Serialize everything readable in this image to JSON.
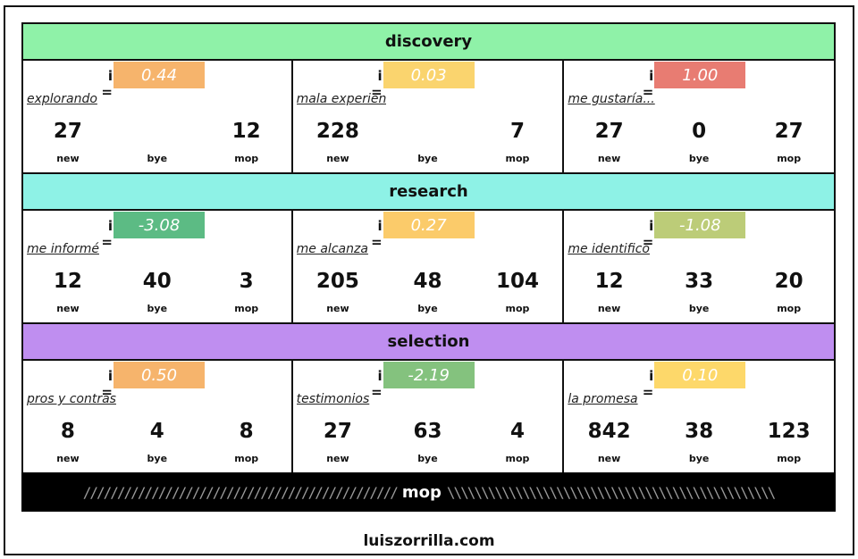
{
  "stages": [
    {
      "name": "discovery",
      "color": "#8ff2a8",
      "cells": [
        {
          "i_label": "i =",
          "i_value": "0.44",
          "i_color": "#f6b46c",
          "title": "explorando",
          "metrics": [
            {
              "value": "27",
              "label": "new"
            },
            {
              "value": "",
              "label": "bye"
            },
            {
              "value": "12",
              "label": "mop"
            }
          ]
        },
        {
          "i_label": "i =",
          "i_value": "0.03",
          "i_color": "#fad46e",
          "title": "mala experiencia",
          "metrics": [
            {
              "value": "228",
              "label": "new"
            },
            {
              "value": "",
              "label": "bye"
            },
            {
              "value": "7",
              "label": "mop"
            }
          ]
        },
        {
          "i_label": "i =",
          "i_value": "1.00",
          "i_color": "#e87c72",
          "title": "me gustaría...",
          "metrics": [
            {
              "value": "27",
              "label": "new"
            },
            {
              "value": "0",
              "label": "bye"
            },
            {
              "value": "27",
              "label": "mop"
            }
          ]
        }
      ]
    },
    {
      "name": "research",
      "color": "#8ef2e6",
      "cells": [
        {
          "i_label": "i =",
          "i_value": "-3.08",
          "i_color": "#5cbb84",
          "title": "me informé",
          "metrics": [
            {
              "value": "12",
              "label": "new"
            },
            {
              "value": "40",
              "label": "bye"
            },
            {
              "value": "3",
              "label": "mop"
            }
          ]
        },
        {
          "i_label": "i =",
          "i_value": "0.27",
          "i_color": "#fbcb6a",
          "title": "me alcanza",
          "metrics": [
            {
              "value": "205",
              "label": "new"
            },
            {
              "value": "48",
              "label": "bye"
            },
            {
              "value": "104",
              "label": "mop"
            }
          ]
        },
        {
          "i_label": "i =",
          "i_value": "-1.08",
          "i_color": "#bccc78",
          "title": "me identifico",
          "metrics": [
            {
              "value": "12",
              "label": "new"
            },
            {
              "value": "33",
              "label": "bye"
            },
            {
              "value": "20",
              "label": "mop"
            }
          ]
        }
      ]
    },
    {
      "name": "selection",
      "color": "#bf8ef0",
      "cells": [
        {
          "i_label": "i =",
          "i_value": "0.50",
          "i_color": "#f6b46c",
          "title": "pros y contras",
          "metrics": [
            {
              "value": "8",
              "label": "new"
            },
            {
              "value": "4",
              "label": "bye"
            },
            {
              "value": "8",
              "label": "mop"
            }
          ]
        },
        {
          "i_label": "i =",
          "i_value": "-2.19",
          "i_color": "#84c27e",
          "title": "testimonios",
          "metrics": [
            {
              "value": "27",
              "label": "new"
            },
            {
              "value": "63",
              "label": "bye"
            },
            {
              "value": "4",
              "label": "mop"
            }
          ]
        },
        {
          "i_label": "i =",
          "i_value": "0.10",
          "i_color": "#fdd86a",
          "title": "la promesa",
          "metrics": [
            {
              "value": "842",
              "label": "new"
            },
            {
              "value": "38",
              "label": "bye"
            },
            {
              "value": "123",
              "label": "mop"
            }
          ]
        }
      ]
    }
  ],
  "mop_bar": {
    "label": "mop",
    "left_hatch": "//////////////////////////////////////////////",
    "right_hatch": "\\\\\\\\\\\\\\\\\\\\\\\\\\\\\\\\\\\\\\\\\\\\\\\\\\\\\\\\\\\\\\\\\\\\\\\\\\\\\\\\\\\\\\\\\\\\\\\\"
  },
  "footer": "luiszorrilla.com"
}
